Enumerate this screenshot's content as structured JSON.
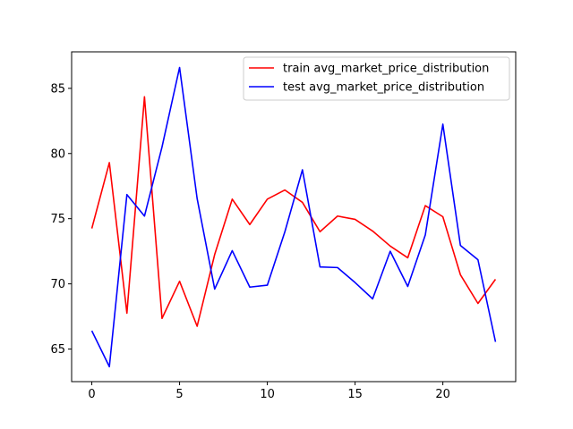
{
  "chart_data": {
    "type": "line",
    "title": "",
    "xlabel": "",
    "ylabel": "",
    "xlim": [
      -1.15,
      24.15
    ],
    "ylim": [
      62.5,
      87.8
    ],
    "xticks": [
      0,
      5,
      10,
      15,
      20
    ],
    "yticks": [
      65,
      70,
      75,
      80,
      85
    ],
    "xtick_labels": [
      "0",
      "5",
      "10",
      "15",
      "20"
    ],
    "ytick_labels": [
      "65",
      "70",
      "75",
      "80",
      "85"
    ],
    "grid": false,
    "legend_position": "top-right",
    "series": [
      {
        "name": "train avg_market_price_distribution",
        "color": "#ff0000",
        "x": [
          0,
          1,
          2,
          3,
          4,
          5,
          6,
          7,
          8,
          9,
          10,
          11,
          12,
          13,
          14,
          15,
          16,
          17,
          18,
          19,
          20,
          21,
          22,
          23
        ],
        "values": [
          74.25,
          79.3,
          67.75,
          84.35,
          67.35,
          70.2,
          66.75,
          72.25,
          76.5,
          74.55,
          76.5,
          77.2,
          76.25,
          74.0,
          75.2,
          74.95,
          74.05,
          72.9,
          72.0,
          76.0,
          75.15,
          70.7,
          68.5,
          70.35
        ]
      },
      {
        "name": "test avg_market_price_distribution",
        "color": "#0000ff",
        "x": [
          0,
          1,
          2,
          3,
          4,
          5,
          6,
          7,
          8,
          9,
          10,
          11,
          12,
          13,
          14,
          15,
          16,
          17,
          18,
          19,
          20,
          21,
          22,
          23
        ],
        "values": [
          66.4,
          63.65,
          76.85,
          75.2,
          80.5,
          86.6,
          76.55,
          69.6,
          72.55,
          69.75,
          69.9,
          74.0,
          78.75,
          71.3,
          71.25,
          70.1,
          68.85,
          72.5,
          69.8,
          73.75,
          82.25,
          72.95,
          71.85,
          65.55
        ]
      }
    ]
  }
}
